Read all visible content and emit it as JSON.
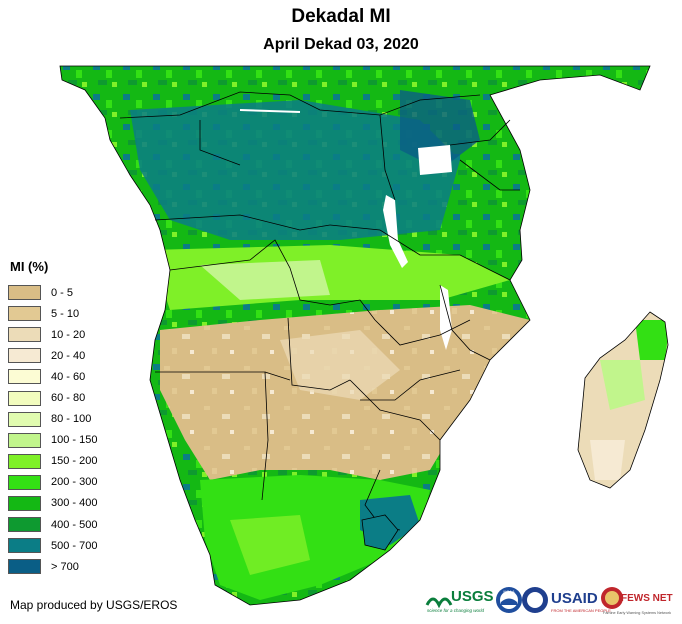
{
  "title": "Dekadal MI",
  "subtitle": "April Dekad 03, 2020",
  "legend": {
    "title": "MI (%)",
    "items": [
      {
        "label": "0 - 5",
        "color": "#d9bd86"
      },
      {
        "label": "5 - 10",
        "color": "#e2c993"
      },
      {
        "label": "10 - 20",
        "color": "#ecdcb8"
      },
      {
        "label": "20 - 40",
        "color": "#f6ead3"
      },
      {
        "label": "40 - 60",
        "color": "#fcfcd4"
      },
      {
        "label": "60 - 80",
        "color": "#f2fcbe"
      },
      {
        "label": "80 - 100",
        "color": "#e1fcb0"
      },
      {
        "label": "100 - 150",
        "color": "#c1f58c"
      },
      {
        "label": "150 - 200",
        "color": "#7ff028"
      },
      {
        "label": "200 - 300",
        "color": "#33e014"
      },
      {
        "label": "300 - 400",
        "color": "#14b814"
      },
      {
        "label": "400 - 500",
        "color": "#0e9a30"
      },
      {
        "label": "500 - 700",
        "color": "#0b7d86"
      },
      {
        "label": "> 700",
        "color": "#0a5e86"
      }
    ]
  },
  "credit": "Map produced by USGS/EROS",
  "logos": [
    {
      "name": "usgs-logo",
      "text": "USGS",
      "tagline": "science for a changing world"
    },
    {
      "name": "noaa-logo",
      "text": "NOAA"
    },
    {
      "name": "usaid-logo",
      "text": "USAID",
      "tagline": "FROM THE AMERICAN PEOPLE"
    },
    {
      "name": "fewsnet-logo",
      "text": "FEWS NET",
      "tagline": "Famine Early Warning Systems Network"
    }
  ]
}
